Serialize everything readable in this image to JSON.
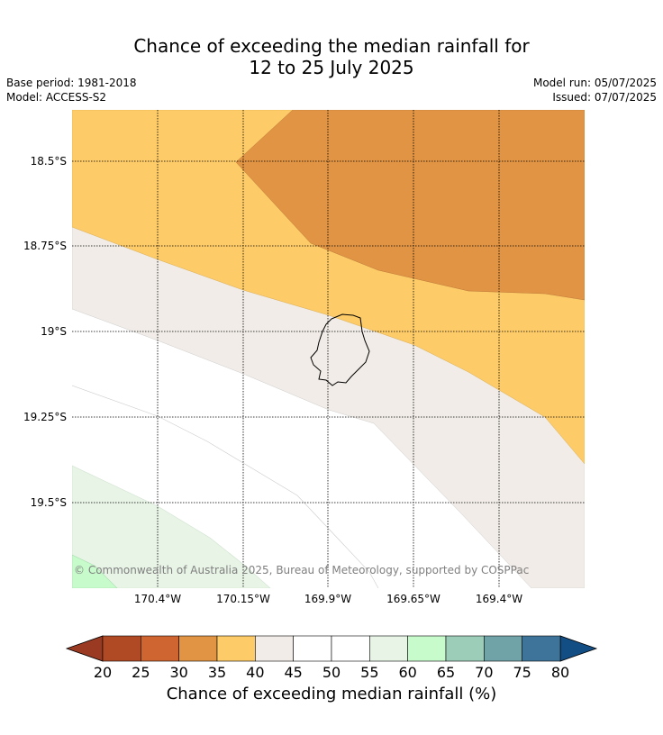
{
  "title_line1": "Chance of exceeding the median rainfall for",
  "title_line2": "12 to 25 July 2025",
  "base_period": "Base period: 1981-2018",
  "model": "Model: ACCESS-S2",
  "model_run": "Model run: 05/07/2025",
  "issued": "Issued: 07/07/2025",
  "copyright": "© Commonwealth of Australia 2025, Bureau of Meteorology, supported by COSPPac",
  "lat_labels": [
    "18.5°S",
    "18.75°S",
    "19°S",
    "19.25°S",
    "19.5°S"
  ],
  "lon_labels": [
    "170.4°W",
    "170.15°W",
    "169.9°W",
    "169.65°W",
    "169.4°W"
  ],
  "colorbar": {
    "title": "Chance of exceeding median rainfall (%)",
    "ticks": [
      "20",
      "25",
      "30",
      "35",
      "40",
      "45",
      "50",
      "55",
      "60",
      "65",
      "70",
      "75",
      "80"
    ],
    "colors": [
      "#b04a25",
      "#cf6530",
      "#e09444",
      "#fdcb67",
      "#f1ece7",
      "#ffffff",
      "#ffffff",
      "#e8f4e6",
      "#c8fbcc",
      "#9bcdb8",
      "#6fa3a8",
      "#3e7499"
    ],
    "under_color": "#9a3a22",
    "over_color": "#124d84"
  }
}
